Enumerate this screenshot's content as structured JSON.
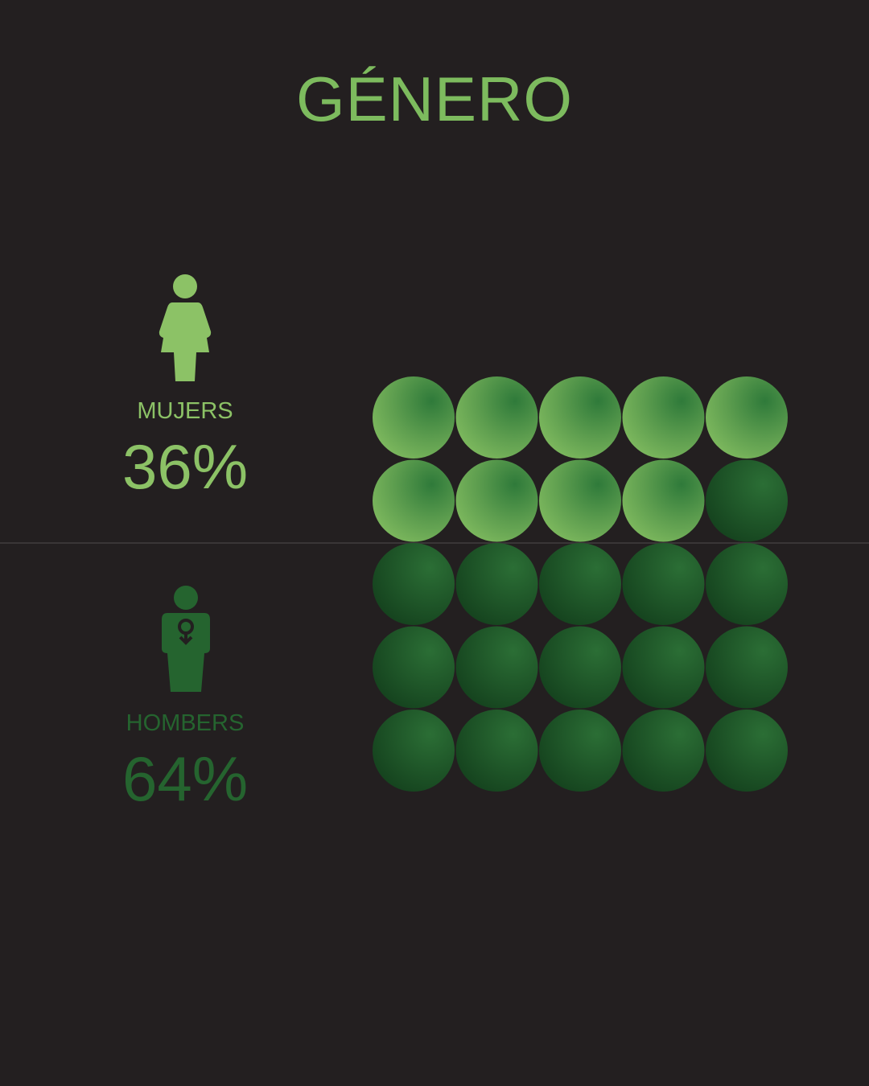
{
  "title": "GÉNERO",
  "colors": {
    "background": "#231f20",
    "women": "#8cc266",
    "men": "#25642f"
  },
  "women": {
    "label": "MUJERS",
    "percent": "36%",
    "icon": "woman-icon"
  },
  "men": {
    "label": "HOMBERS",
    "percent": "64%",
    "icon": "man-icon"
  },
  "chart_data": {
    "type": "waffle",
    "rows": 5,
    "columns": 5,
    "series": [
      {
        "name": "MUJERS",
        "value": 36,
        "units": 9
      },
      {
        "name": "HOMBERS",
        "value": 64,
        "units": 16
      }
    ]
  }
}
